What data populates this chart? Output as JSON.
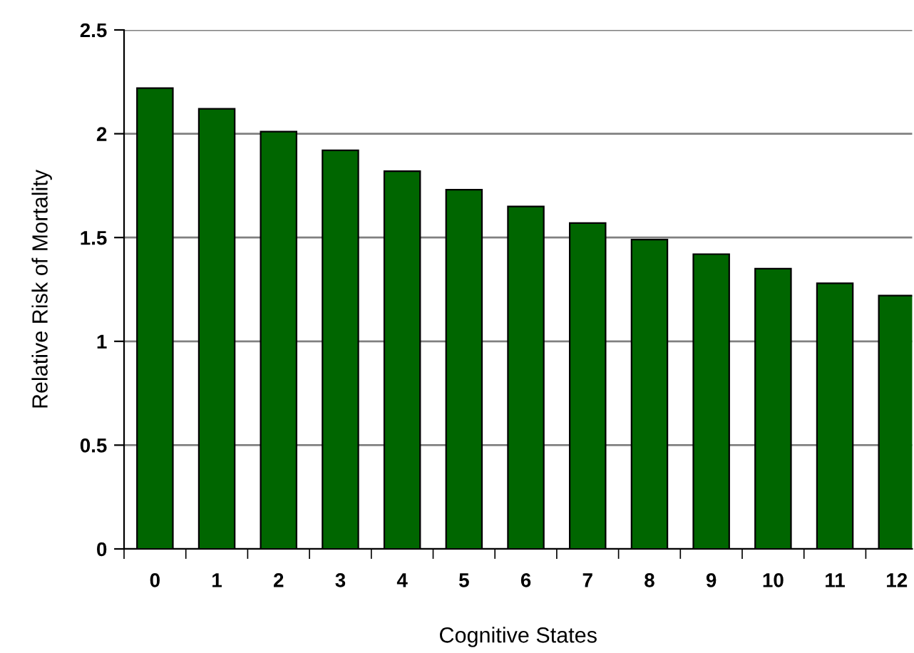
{
  "chart_data": {
    "type": "bar",
    "categories": [
      "0",
      "1",
      "2",
      "3",
      "4",
      "5",
      "6",
      "7",
      "8",
      "9",
      "10",
      "11",
      "12"
    ],
    "values": [
      2.22,
      2.12,
      2.01,
      1.92,
      1.82,
      1.73,
      1.65,
      1.57,
      1.49,
      1.42,
      1.35,
      1.28,
      1.22
    ],
    "color": "#006600",
    "xlabel": "Cognitive States",
    "ylabel": "Relative Risk of Mortality",
    "ylim": [
      0,
      2.5
    ],
    "yticks": [
      0,
      0.5,
      1,
      1.5,
      2,
      2.5
    ],
    "grid": "y"
  }
}
